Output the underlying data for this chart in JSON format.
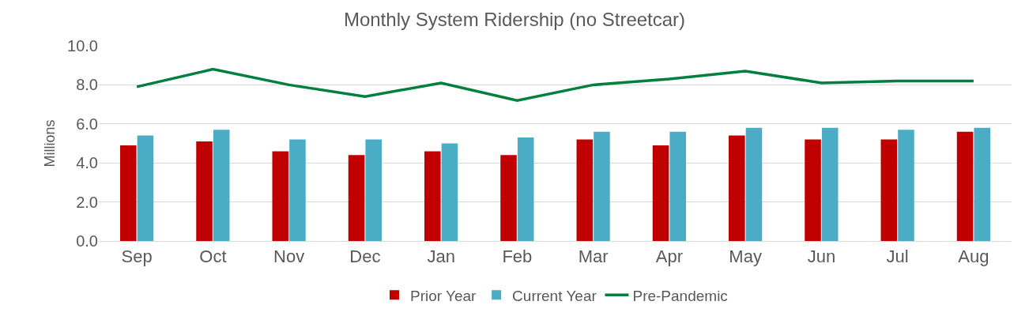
{
  "chart_data": {
    "type": "bar",
    "title": "Monthly System Ridership (no Streetcar)",
    "ylabel": "Millions",
    "categories": [
      "Sep",
      "Oct",
      "Nov",
      "Dec",
      "Jan",
      "Feb",
      "Mar",
      "Apr",
      "May",
      "Jun",
      "Jul",
      "Aug"
    ],
    "series": [
      {
        "name": "Prior Year",
        "color": "#c00000",
        "values": [
          4.9,
          5.1,
          4.6,
          4.4,
          4.6,
          4.4,
          5.2,
          4.9,
          5.4,
          5.2,
          5.2,
          5.6
        ]
      },
      {
        "name": "Current Year",
        "color": "#4bacc6",
        "values": [
          5.4,
          5.7,
          5.2,
          5.2,
          5.0,
          5.3,
          5.6,
          5.6,
          5.8,
          5.8,
          5.7,
          5.8
        ]
      },
      {
        "name": "Pre-Pandemic",
        "type": "line",
        "color": "#00803c",
        "values": [
          7.9,
          8.8,
          8.0,
          7.4,
          8.1,
          7.2,
          8.0,
          8.3,
          8.7,
          8.1,
          8.2,
          8.2
        ]
      }
    ],
    "ylim": [
      0,
      10
    ],
    "yticks": [
      {
        "value": 0,
        "label": "0.0"
      },
      {
        "value": 2,
        "label": "2.0"
      },
      {
        "value": 4,
        "label": "4.0"
      },
      {
        "value": 6,
        "label": "6.0"
      },
      {
        "value": 8,
        "label": "8.0"
      },
      {
        "value": 10,
        "label": "10.0"
      }
    ],
    "grid": "y",
    "legend": "bottom",
    "marker": "none"
  }
}
